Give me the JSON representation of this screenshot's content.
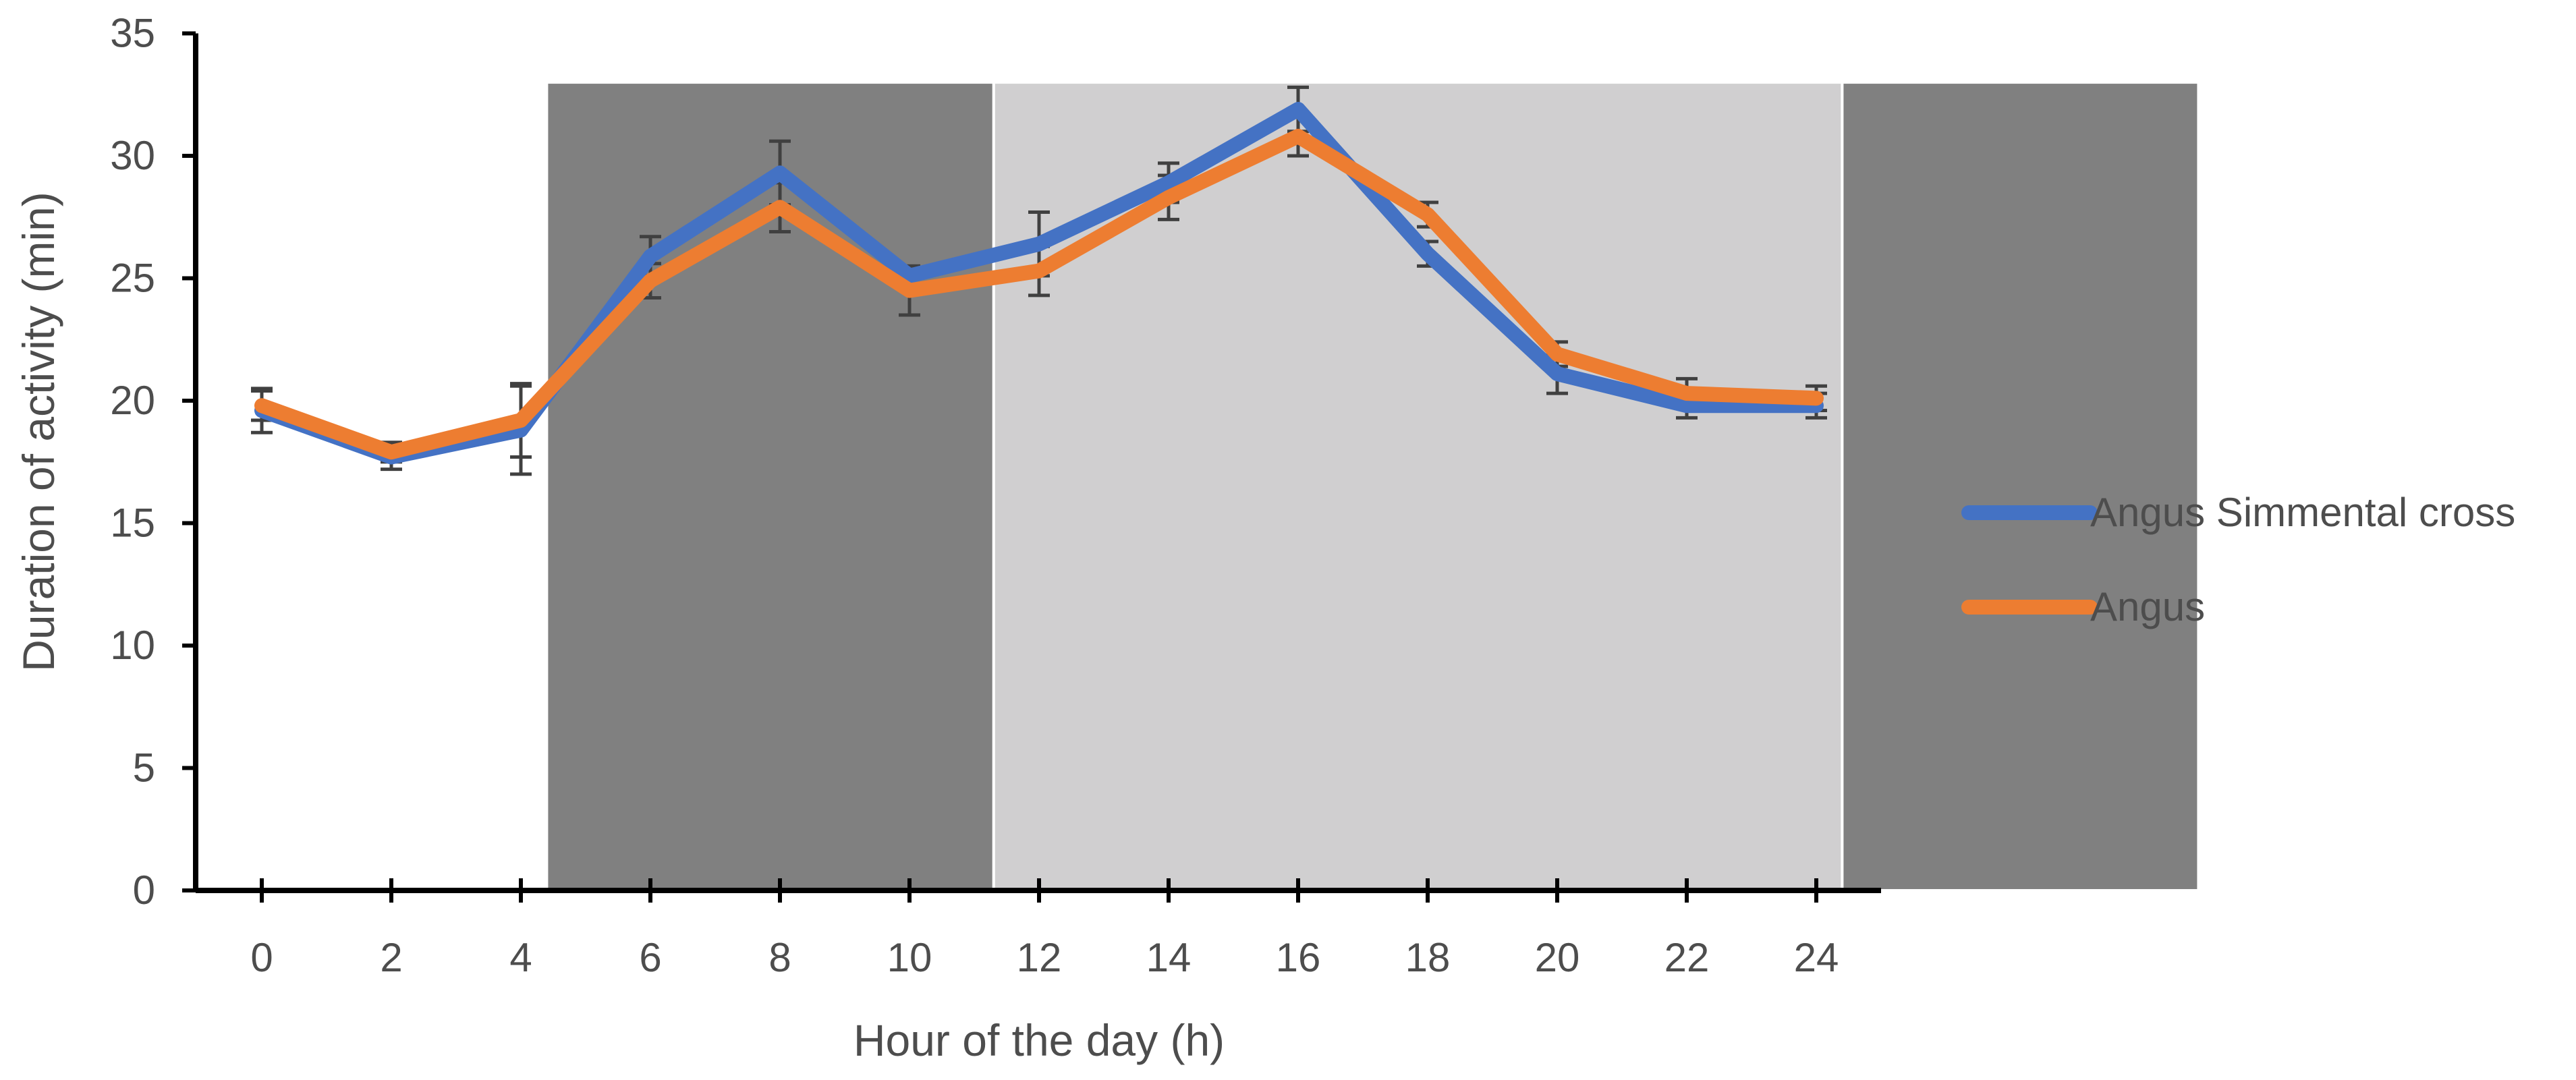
{
  "chart_data": {
    "type": "line",
    "xlabel": "Hour of the day (h)",
    "ylabel": "Duration of activity (min)",
    "xlim": [
      -1,
      25
    ],
    "ylim": [
      0,
      35
    ],
    "x_ticks": [
      0,
      2,
      4,
      6,
      8,
      10,
      12,
      14,
      16,
      18,
      20,
      22,
      24
    ],
    "y_ticks": [
      0,
      5,
      10,
      15,
      20,
      25,
      30,
      35
    ],
    "grid": false,
    "legend_position": "right",
    "shaded_regions": [
      {
        "x_start": 4.4,
        "x_end": 11.3,
        "color": "#808080"
      },
      {
        "x_start": 11.3,
        "x_end": 24.4,
        "color": "#d0cfd0"
      },
      {
        "x_start": 24.4,
        "x_end": 29.9,
        "color": "#808080"
      }
    ],
    "x": [
      0,
      2,
      4,
      6,
      8,
      10,
      12,
      14,
      16,
      18,
      20,
      22,
      24
    ],
    "series": [
      {
        "name": "Angus Simmental cross",
        "color": "#4472c4",
        "values": [
          19.6,
          17.7,
          18.8,
          25.9,
          29.3,
          25.1,
          26.4,
          28.9,
          31.9,
          26.0,
          21.1,
          19.8,
          19.8
        ],
        "errors": [
          0.9,
          0.5,
          1.8,
          0.8,
          1.3,
          0.4,
          1.3,
          0.8,
          0.9,
          0.5,
          0.8,
          0.5,
          0.5
        ]
      },
      {
        "name": "Angus",
        "color": "#ed7d31",
        "values": [
          19.8,
          17.9,
          19.2,
          24.9,
          27.9,
          24.5,
          25.3,
          28.3,
          30.8,
          27.6,
          21.9,
          20.3,
          20.1
        ],
        "errors": [
          0.6,
          0.4,
          1.5,
          0.7,
          1.0,
          1.0,
          1.0,
          0.9,
          0.8,
          0.5,
          0.5,
          0.6,
          0.5
        ]
      }
    ]
  }
}
